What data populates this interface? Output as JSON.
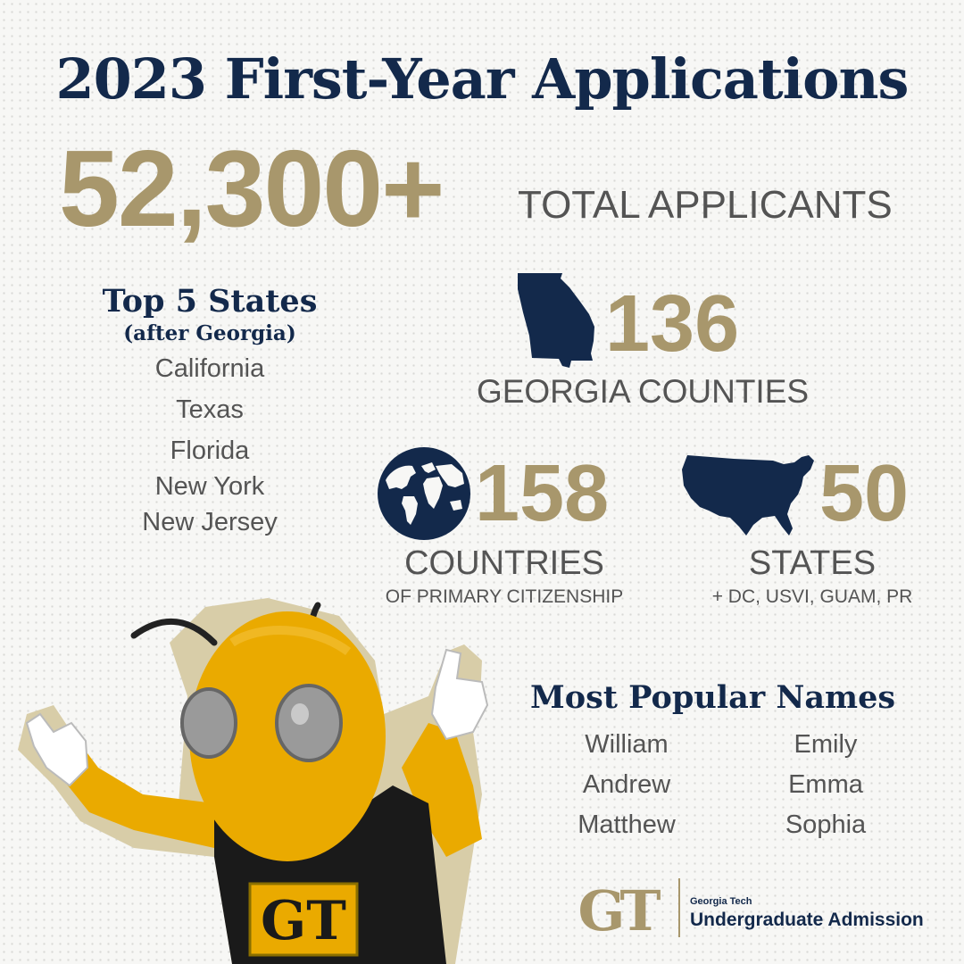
{
  "title": "2023 First-Year Applications",
  "total": {
    "number": "52,300+",
    "label": "TOTAL APPLICANTS"
  },
  "top_states": {
    "heading": "Top 5 States",
    "subheading": "(after Georgia)",
    "items": [
      "California",
      "Texas",
      "Florida",
      "New York",
      "New Jersey"
    ]
  },
  "georgia": {
    "number": "136",
    "label": "GEORGIA COUNTIES",
    "icon": "georgia-map-icon"
  },
  "countries": {
    "number": "158",
    "label": "COUNTRIES",
    "sublabel": "OF PRIMARY CITIZENSHIP",
    "icon": "globe-icon"
  },
  "states": {
    "number": "50",
    "label": "STATES",
    "sublabel": "+ DC, USVI, GUAM, PR",
    "icon": "us-map-icon"
  },
  "names": {
    "heading": "Most Popular Names",
    "left": [
      "William",
      "Andrew",
      "Matthew"
    ],
    "right": [
      "Emily",
      "Emma",
      "Sophia"
    ]
  },
  "footer": {
    "logo_mark": "GT",
    "small": "Georgia Tech",
    "big": "Undergraduate Admission"
  },
  "colors": {
    "navy": "#13294b",
    "gold": "#a8976c",
    "gray": "#545454",
    "mascot_yellow": "#eaaa00"
  }
}
